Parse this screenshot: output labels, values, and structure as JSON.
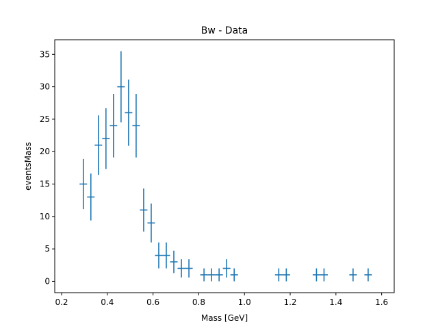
{
  "chart_data": {
    "type": "scatter",
    "style": "errorbar",
    "title": "Bw - Data",
    "xlabel": "Mass [GeV]",
    "ylabel": "eventsMass",
    "xlim": [
      0.17,
      1.655
    ],
    "ylim": [
      -1.75,
      37.25
    ],
    "xticks": [
      0.2,
      0.4,
      0.6,
      0.8,
      1.0,
      1.2,
      1.4,
      1.6
    ],
    "xtick_labels": [
      "0.2",
      "0.4",
      "0.6",
      "0.8",
      "1.0",
      "1.2",
      "1.4",
      "1.6"
    ],
    "yticks": [
      0,
      5,
      10,
      15,
      20,
      25,
      30,
      35
    ],
    "ytick_labels": [
      "0",
      "5",
      "10",
      "15",
      "20",
      "25",
      "30",
      "35"
    ],
    "grid": false,
    "legend": false,
    "color": "#1f77b4",
    "x_half_width": 0.0165,
    "series": [
      {
        "x": [
          0.295,
          0.328,
          0.361,
          0.394,
          0.427,
          0.46,
          0.493,
          0.526,
          0.559,
          0.592,
          0.625,
          0.658,
          0.691,
          0.724,
          0.757,
          0.823,
          0.856,
          0.889,
          0.922,
          0.955,
          1.15,
          1.183,
          1.315,
          1.348,
          1.475,
          1.541
        ],
        "y": [
          15,
          13,
          21,
          22,
          24,
          30,
          26,
          24,
          11,
          9,
          4,
          4,
          3,
          2,
          2,
          1,
          1,
          1,
          2,
          1,
          1,
          1,
          1,
          1,
          1,
          1
        ],
        "yerr": [
          3.87,
          3.61,
          4.58,
          4.69,
          4.9,
          5.48,
          5.1,
          4.9,
          3.32,
          3.0,
          2.0,
          2.0,
          1.73,
          1.41,
          1.41,
          1.0,
          1.0,
          1.0,
          1.41,
          1.0,
          1.0,
          1.0,
          1.0,
          1.0,
          1.0,
          1.0
        ]
      }
    ]
  }
}
